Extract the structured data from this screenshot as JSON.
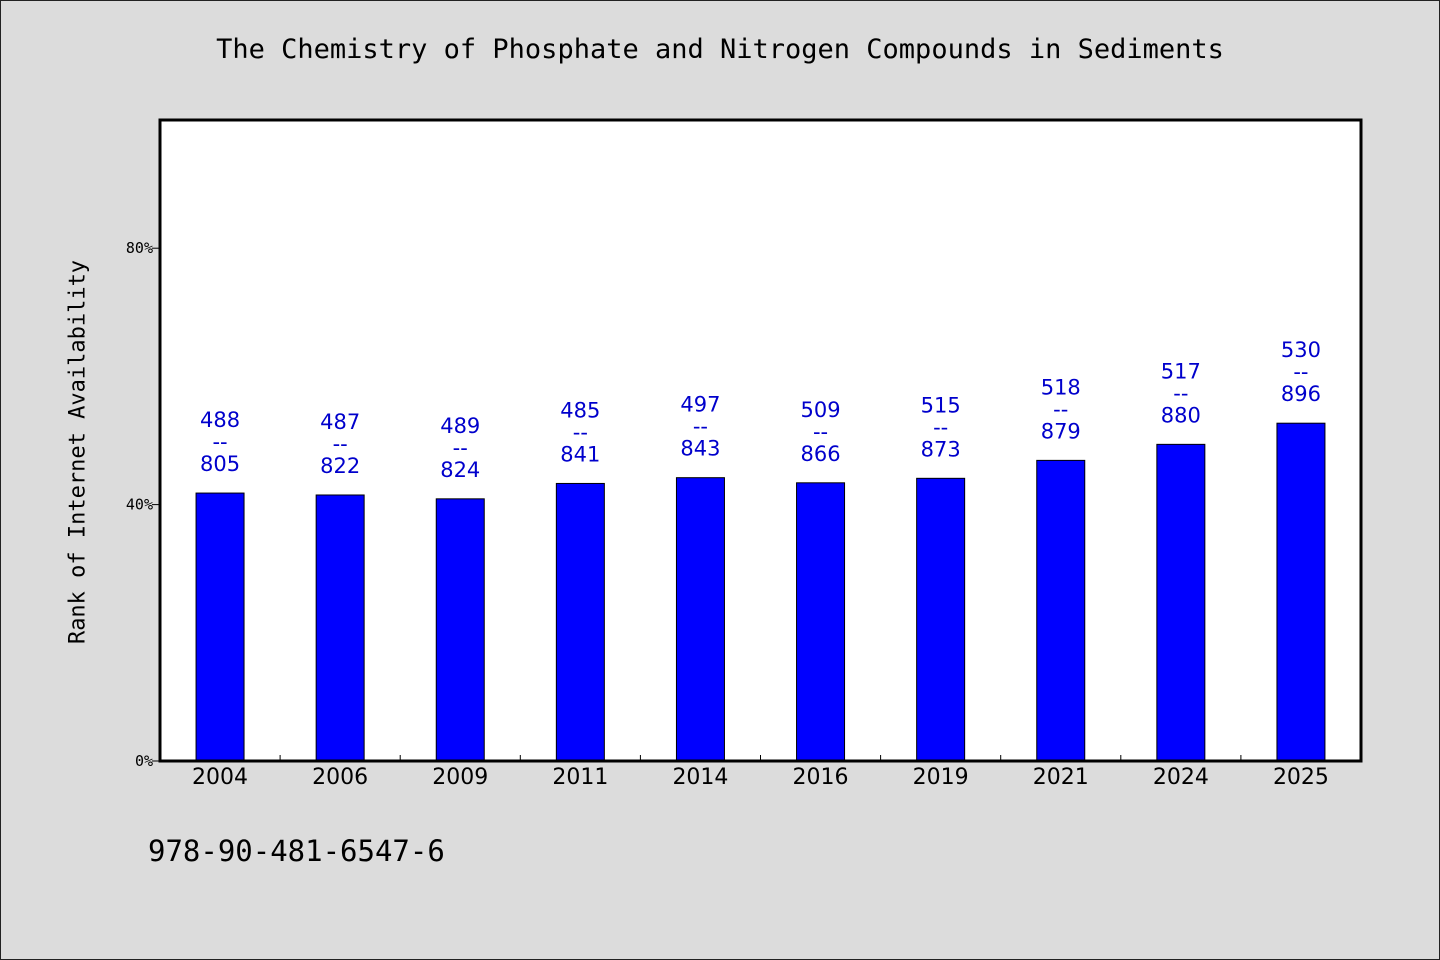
{
  "chart_data": {
    "type": "bar",
    "title": "The Chemistry of Phosphate and Nitrogen Compounds in Sediments",
    "ylabel": "Rank of Internet Availability",
    "xlabel": "",
    "ylim": [
      0,
      100
    ],
    "yticks": [
      0,
      40,
      80
    ],
    "ytick_labels": [
      "0%",
      "40%",
      "80%"
    ],
    "grid": false,
    "categories": [
      "2004",
      "2006",
      "2009",
      "2011",
      "2014",
      "2016",
      "2019",
      "2021",
      "2024",
      "2025"
    ],
    "values": [
      41.8,
      41.5,
      40.9,
      43.3,
      44.2,
      43.4,
      44.1,
      46.9,
      49.4,
      52.7
    ],
    "labels": [
      [
        "488",
        "--",
        "805"
      ],
      [
        "487",
        "--",
        "822"
      ],
      [
        "489",
        "--",
        "824"
      ],
      [
        "485",
        "--",
        "841"
      ],
      [
        "497",
        "--",
        "843"
      ],
      [
        "509",
        "--",
        "866"
      ],
      [
        "515",
        "--",
        "873"
      ],
      [
        "518",
        "--",
        "879"
      ],
      [
        "517",
        "--",
        "880"
      ],
      [
        "530",
        "--",
        "896"
      ]
    ],
    "colors": {
      "bar": "#0000ff",
      "label": "#0000cc",
      "background": "#dcdcdc",
      "plot_background": "#ffffff"
    }
  },
  "footer": {
    "isbn": "978-90-481-6547-6"
  }
}
